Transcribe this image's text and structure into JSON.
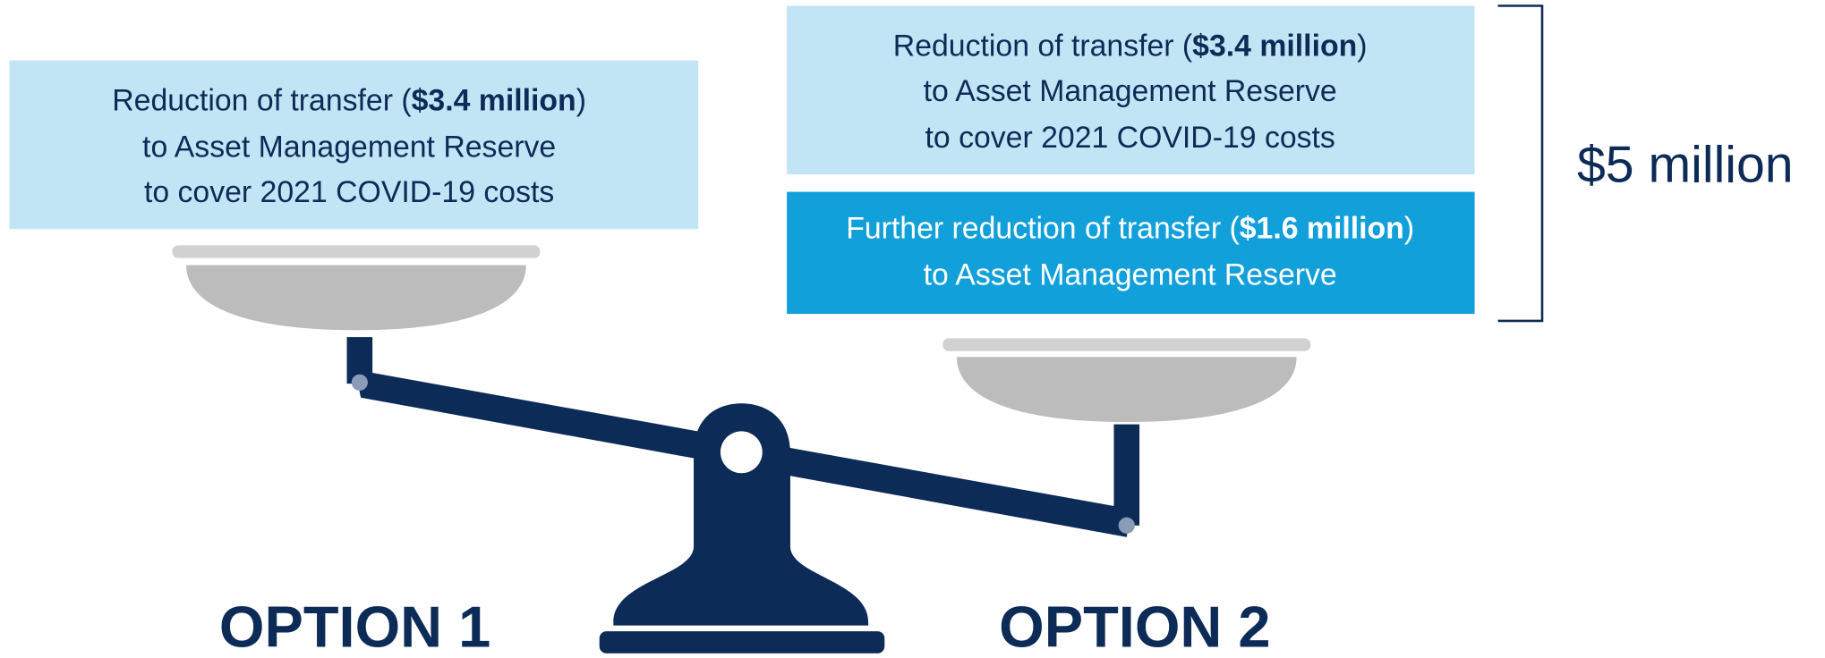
{
  "option1": {
    "label": "OPTION 1",
    "box": {
      "before": "Reduction of transfer (",
      "amount": "$3.4 million",
      "after": ")",
      "line2": "to Asset Management Reserve",
      "line3": "to cover 2021 COVID-19 costs"
    }
  },
  "option2": {
    "label": "OPTION 2",
    "box1": {
      "before": "Reduction of transfer (",
      "amount": "$3.4 million",
      "after": ")",
      "line2": "to Asset Management Reserve",
      "line3": "to cover 2021 COVID-19 costs"
    },
    "box2": {
      "before": "Further reduction of transfer (",
      "amount": "$1.6 million",
      "after": ")",
      "line2": "to Asset Management Reserve"
    },
    "total": "$5 million"
  }
}
